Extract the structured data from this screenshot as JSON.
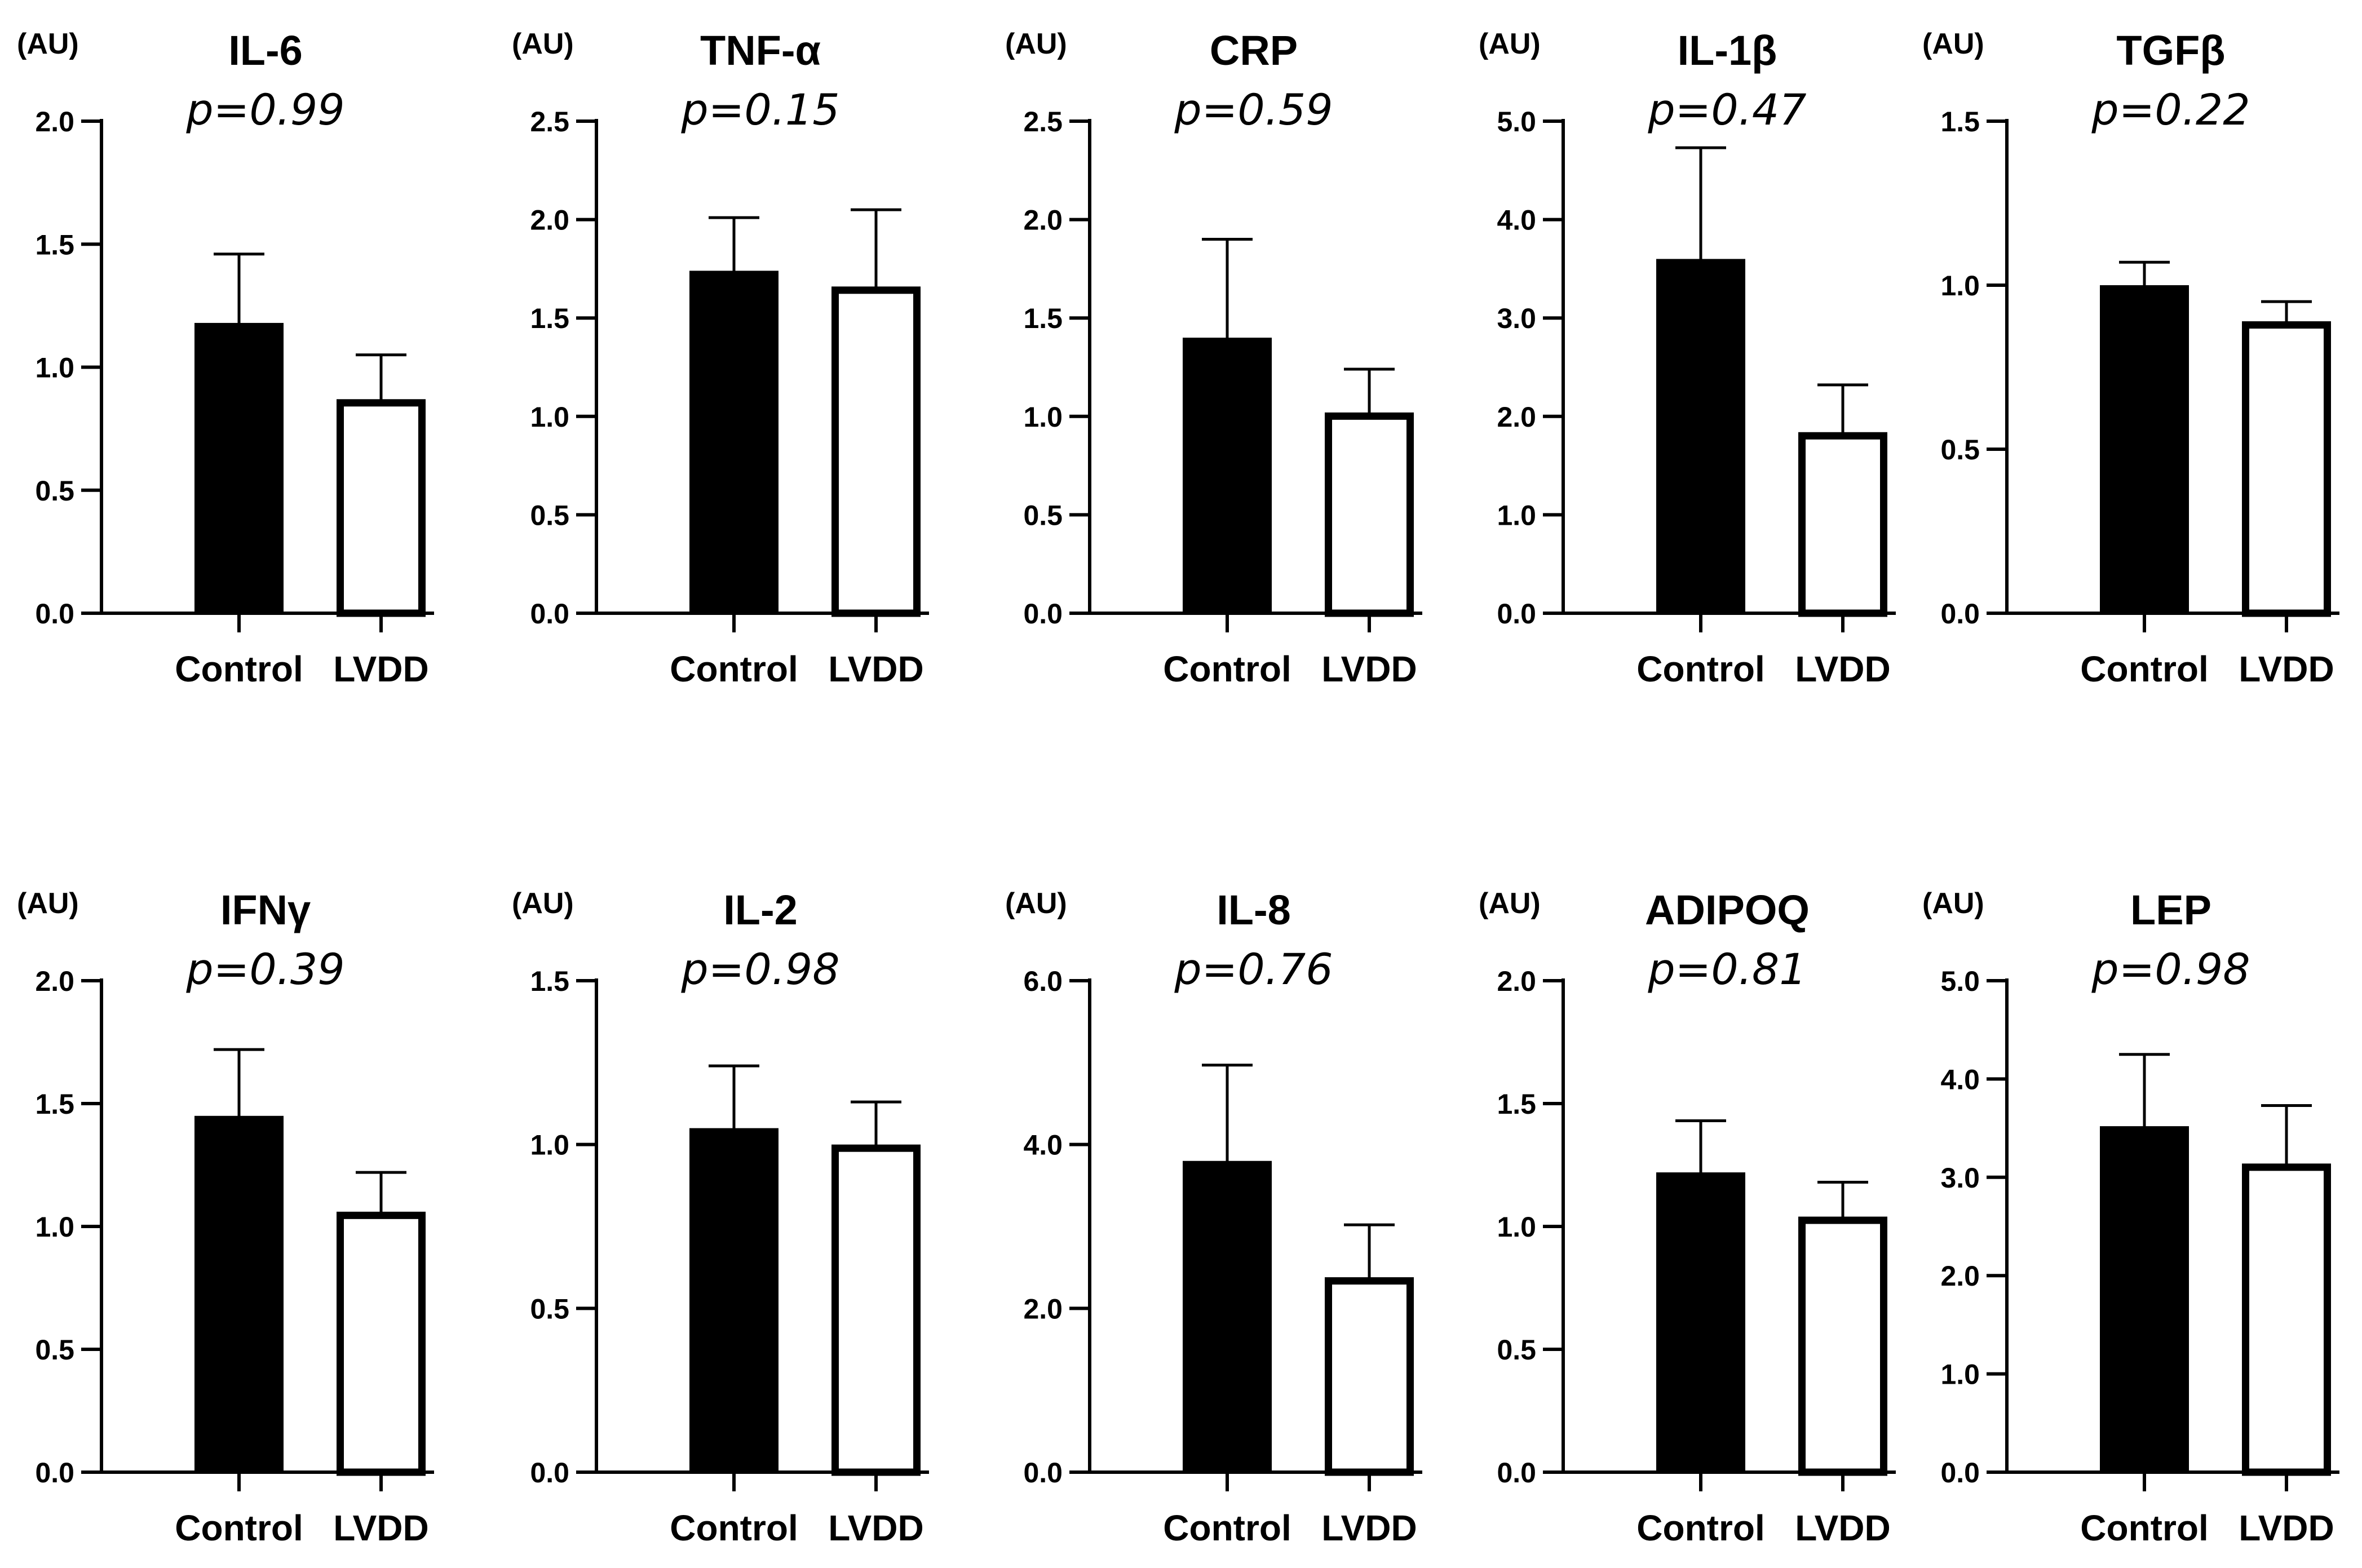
{
  "chart_data": [
    {
      "type": "bar",
      "title": "IL-6",
      "annotation": "p=0.99",
      "unit_label": "(AU)",
      "categories": [
        "Control",
        "LVDD"
      ],
      "values": [
        1.18,
        0.87
      ],
      "errors": [
        0.28,
        0.18
      ],
      "fills": [
        "#000000",
        "#ffffff"
      ],
      "ylim": [
        0,
        2.0
      ],
      "yticks": [
        0,
        0.5,
        1.0,
        1.5,
        2.0
      ],
      "ytick_labels": [
        "0.0",
        "0.5",
        "1.0",
        "1.5",
        "2.0"
      ]
    },
    {
      "type": "bar",
      "title": "TNF-α",
      "annotation": "p=0.15",
      "unit_label": "(AU)",
      "categories": [
        "Control",
        "LVDD"
      ],
      "values": [
        1.74,
        1.66
      ],
      "errors": [
        0.27,
        0.39
      ],
      "fills": [
        "#000000",
        "#ffffff"
      ],
      "ylim": [
        0,
        2.5
      ],
      "yticks": [
        0,
        0.5,
        1.0,
        1.5,
        2.0,
        2.5
      ],
      "ytick_labels": [
        "0.0",
        "0.5",
        "1.0",
        "1.5",
        "2.0",
        "2.5"
      ]
    },
    {
      "type": "bar",
      "title": "CRP",
      "annotation": "p=0.59",
      "unit_label": "(AU)",
      "categories": [
        "Control",
        "LVDD"
      ],
      "values": [
        1.4,
        1.02
      ],
      "errors": [
        0.5,
        0.22
      ],
      "fills": [
        "#000000",
        "#ffffff"
      ],
      "ylim": [
        0,
        2.5
      ],
      "yticks": [
        0,
        0.5,
        1.0,
        1.5,
        2.0,
        2.5
      ],
      "ytick_labels": [
        "0.0",
        "0.5",
        "1.0",
        "1.5",
        "2.0",
        "2.5"
      ]
    },
    {
      "type": "bar",
      "title": "IL-1β",
      "annotation": "p=0.47",
      "unit_label": "(AU)",
      "categories": [
        "Control",
        "LVDD"
      ],
      "values": [
        3.6,
        1.84
      ],
      "errors": [
        1.13,
        0.48
      ],
      "fills": [
        "#000000",
        "#ffffff"
      ],
      "ylim": [
        0,
        5.0
      ],
      "yticks": [
        0,
        1,
        2,
        3,
        4,
        5
      ],
      "ytick_labels": [
        "0.0",
        "1.0",
        "2.0",
        "3.0",
        "4.0",
        "5.0"
      ]
    },
    {
      "type": "bar",
      "title": "TGFβ",
      "annotation": "p=0.22",
      "unit_label": "(AU)",
      "categories": [
        "Control",
        "LVDD"
      ],
      "values": [
        1.0,
        0.89
      ],
      "errors": [
        0.07,
        0.06
      ],
      "fills": [
        "#000000",
        "#ffffff"
      ],
      "ylim": [
        0,
        1.5
      ],
      "yticks": [
        0,
        0.5,
        1.0,
        1.5
      ],
      "ytick_labels": [
        "0.0",
        "0.5",
        "1.0",
        "1.5"
      ]
    },
    {
      "type": "bar",
      "title": "IFNγ",
      "annotation": "p=0.39",
      "unit_label": "(AU)",
      "categories": [
        "Control",
        "LVDD"
      ],
      "values": [
        1.45,
        1.06
      ],
      "errors": [
        0.27,
        0.16
      ],
      "fills": [
        "#000000",
        "#ffffff"
      ],
      "ylim": [
        0,
        2.0
      ],
      "yticks": [
        0,
        0.5,
        1.0,
        1.5,
        2.0
      ],
      "ytick_labels": [
        "0.0",
        "0.5",
        "1.0",
        "1.5",
        "2.0"
      ]
    },
    {
      "type": "bar",
      "title": "IL-2",
      "annotation": "p=0.98",
      "unit_label": "(AU)",
      "categories": [
        "Control",
        "LVDD"
      ],
      "values": [
        1.05,
        1.0
      ],
      "errors": [
        0.19,
        0.13
      ],
      "fills": [
        "#000000",
        "#ffffff"
      ],
      "ylim": [
        0,
        1.5
      ],
      "yticks": [
        0,
        0.5,
        1.0,
        1.5
      ],
      "ytick_labels": [
        "0.0",
        "0.5",
        "1.0",
        "1.5"
      ]
    },
    {
      "type": "bar",
      "title": "IL-8",
      "annotation": "p=0.76",
      "unit_label": "(AU)",
      "categories": [
        "Control",
        "LVDD"
      ],
      "values": [
        3.8,
        2.38
      ],
      "errors": [
        1.17,
        0.64
      ],
      "fills": [
        "#000000",
        "#ffffff"
      ],
      "ylim": [
        0,
        6.0
      ],
      "yticks": [
        0,
        2,
        4,
        6
      ],
      "ytick_labels": [
        "0.0",
        "2.0",
        "4.0",
        "6.0"
      ]
    },
    {
      "type": "bar",
      "title": "ADIPOQ",
      "annotation": "p=0.81",
      "unit_label": "(AU)",
      "categories": [
        "Control",
        "LVDD"
      ],
      "values": [
        1.22,
        1.04
      ],
      "errors": [
        0.21,
        0.14
      ],
      "fills": [
        "#000000",
        "#ffffff"
      ],
      "ylim": [
        0,
        2.0
      ],
      "yticks": [
        0,
        0.5,
        1.0,
        1.5,
        2.0
      ],
      "ytick_labels": [
        "0.0",
        "0.5",
        "1.0",
        "1.5",
        "2.0"
      ]
    },
    {
      "type": "bar",
      "title": "LEP",
      "annotation": "p=0.98",
      "unit_label": "(AU)",
      "categories": [
        "Control",
        "LVDD"
      ],
      "values": [
        3.52,
        3.14
      ],
      "errors": [
        0.73,
        0.59
      ],
      "fills": [
        "#000000",
        "#ffffff"
      ],
      "ylim": [
        0,
        5.0
      ],
      "yticks": [
        0,
        1,
        2,
        3,
        4,
        5
      ],
      "ytick_labels": [
        "0.0",
        "1.0",
        "2.0",
        "3.0",
        "4.0",
        "5.0"
      ]
    }
  ]
}
